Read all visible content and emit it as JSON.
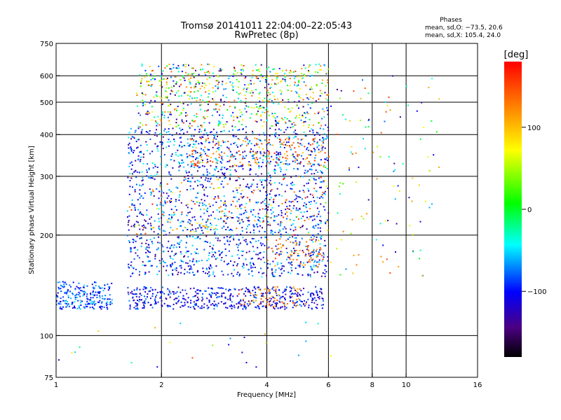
{
  "chart_data": {
    "type": "scatter",
    "title": "Tromsø 20141011 22:04:00–22:05:43",
    "subtitle": "RwPretec (8p)",
    "xlabel": "Frequency [MHz]",
    "ylabel": "Stationary phase Virtual Height [km]",
    "x_scale": "log",
    "y_scale": "log",
    "xlim": [
      1,
      16
    ],
    "ylim": [
      75,
      750
    ],
    "xticks": [
      {
        "value": 1,
        "label": "1"
      },
      {
        "value": 2,
        "label": "2"
      },
      {
        "value": 4,
        "label": "4"
      },
      {
        "value": 6,
        "label": "6"
      },
      {
        "value": 8,
        "label": "8"
      },
      {
        "value": 10,
        "label": "10"
      },
      {
        "value": 16,
        "label": "16"
      }
    ],
    "yticks": [
      {
        "value": 75,
        "label": "75"
      },
      {
        "value": 100,
        "label": "100"
      },
      {
        "value": 200,
        "label": "200"
      },
      {
        "value": 300,
        "label": "300"
      },
      {
        "value": 400,
        "label": "400"
      },
      {
        "value": 500,
        "label": "500"
      },
      {
        "value": 600,
        "label": "600"
      },
      {
        "value": 750,
        "label": "750"
      }
    ],
    "grid_x": [
      2,
      4,
      6,
      8,
      10
    ],
    "grid_y": [
      100,
      200,
      300,
      400,
      500,
      600
    ],
    "grid": true,
    "stats": {
      "heading": "Phases",
      "line_o": "mean, sd,O: −73.5, 20.6",
      "line_x": "mean, sd,X: 105.4, 24.0"
    },
    "colorbar": {
      "label": "[deg]",
      "range": [
        -180,
        180
      ],
      "ticks": [
        {
          "value": 100,
          "label": "100"
        },
        {
          "value": 0,
          "label": "0"
        },
        {
          "value": -100,
          "label": "−100"
        }
      ]
    },
    "clusters": [
      {
        "x": [
          1.0,
          1.45
        ],
        "y": [
          120,
          145
        ],
        "phase": [
          -120,
          -45
        ],
        "n": 220
      },
      {
        "x": [
          1.6,
          5.8
        ],
        "y": [
          120,
          140
        ],
        "phase": [
          -140,
          -70
        ],
        "n": 480
      },
      {
        "x": [
          3.3,
          5.2
        ],
        "y": [
          122,
          140
        ],
        "phase": [
          100,
          160
        ],
        "n": 60
      },
      {
        "x": [
          1.6,
          6.0
        ],
        "y": [
          150,
          200
        ],
        "phase": [
          -150,
          -40
        ],
        "n": 520
      },
      {
        "x": [
          4.0,
          5.8
        ],
        "y": [
          160,
          195
        ],
        "phase": [
          95,
          160
        ],
        "n": 70
      },
      {
        "x": [
          1.6,
          6.0
        ],
        "y": [
          200,
          300
        ],
        "phase": [
          -150,
          -40
        ],
        "n": 620
      },
      {
        "x": [
          1.6,
          6.0
        ],
        "y": [
          200,
          300
        ],
        "phase": [
          60,
          170
        ],
        "n": 140
      },
      {
        "x": [
          1.6,
          6.0
        ],
        "y": [
          300,
          420
        ],
        "phase": [
          -150,
          -30
        ],
        "n": 600
      },
      {
        "x": [
          2.4,
          6.0
        ],
        "y": [
          320,
          390
        ],
        "phase": [
          90,
          170
        ],
        "n": 160
      },
      {
        "x": [
          1.7,
          6.0
        ],
        "y": [
          420,
          650
        ],
        "phase": [
          -160,
          160
        ],
        "n": 700
      },
      {
        "x": [
          5.8,
          12.5
        ],
        "y": [
          150,
          600
        ],
        "phase": [
          -150,
          160
        ],
        "n": 120
      },
      {
        "x": [
          1.0,
          6.5
        ],
        "y": [
          80,
          110
        ],
        "phase": [
          -130,
          150
        ],
        "n": 25
      }
    ]
  }
}
